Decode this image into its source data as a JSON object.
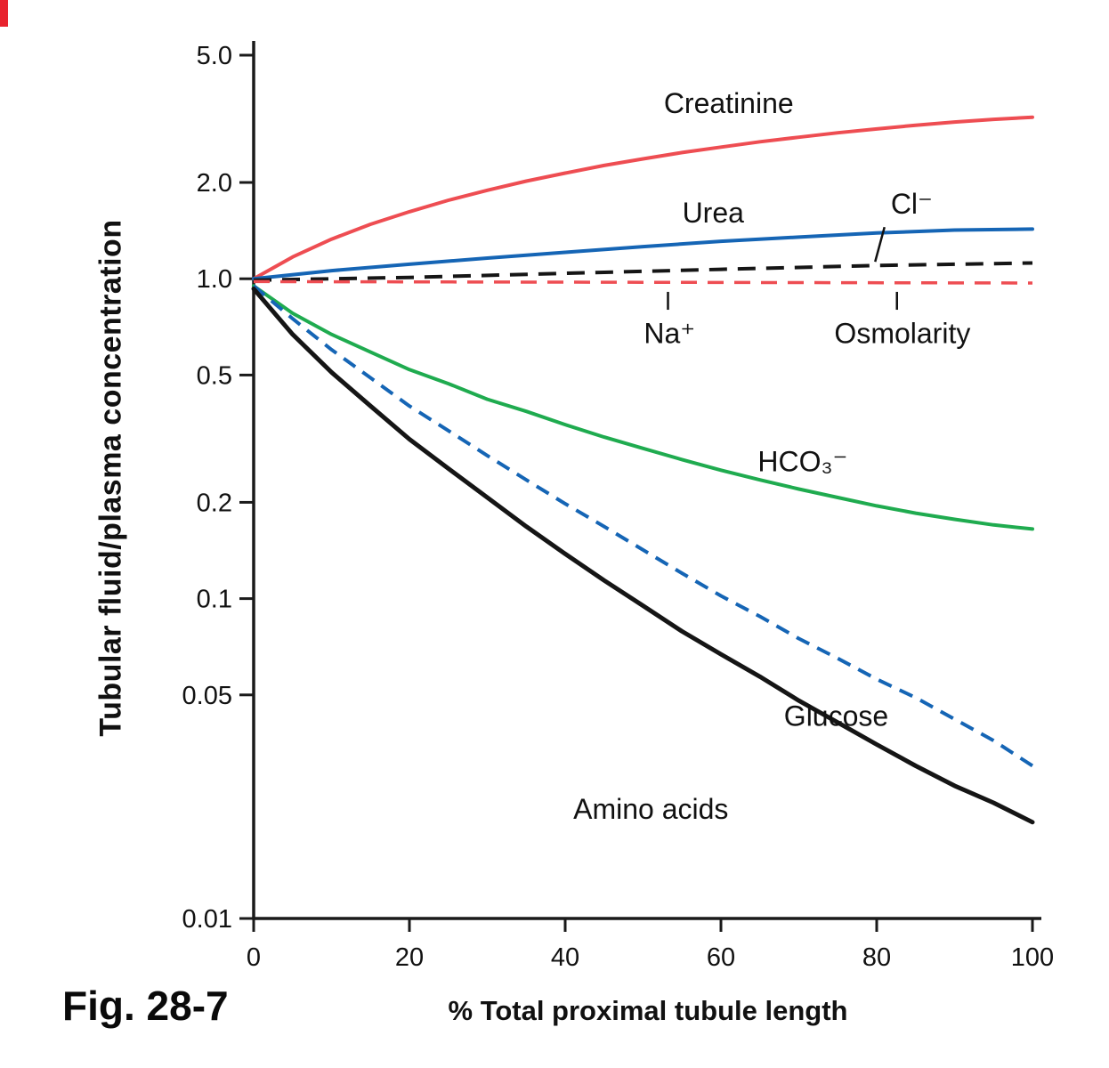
{
  "figure": {
    "caption": "Fig. 28-7",
    "xlabel": "% Total proximal tubule length",
    "ylabel": "Tubular fluid/plasma concentration"
  },
  "chart_data": {
    "type": "line",
    "title": "",
    "xlabel": "% Total proximal tubule length",
    "ylabel": "Tubular fluid/plasma concentration",
    "x_scale": "linear",
    "y_scale": "log",
    "xlim": [
      0,
      100
    ],
    "ylim": [
      0.01,
      5.0
    ],
    "grid": false,
    "legend": "inline-labels",
    "axis_color": "#1a1a1a",
    "x_ticks": [
      {
        "v": 0,
        "label": "0"
      },
      {
        "v": 20,
        "label": "20"
      },
      {
        "v": 40,
        "label": "40"
      },
      {
        "v": 60,
        "label": "60"
      },
      {
        "v": 80,
        "label": "80"
      },
      {
        "v": 100,
        "label": "100"
      }
    ],
    "y_ticks": [
      {
        "v": 5.0,
        "label": "5.0"
      },
      {
        "v": 2.0,
        "label": "2.0"
      },
      {
        "v": 1.0,
        "label": "1.0"
      },
      {
        "v": 0.5,
        "label": "0.5"
      },
      {
        "v": 0.2,
        "label": "0.2"
      },
      {
        "v": 0.1,
        "label": "0.1"
      },
      {
        "v": 0.05,
        "label": "0.05"
      },
      {
        "v": 0.01,
        "label": "0.01"
      }
    ],
    "series": [
      {
        "name": "Creatinine",
        "color": "#ee4d52",
        "style": "solid",
        "width": 4,
        "x": [
          0,
          5,
          10,
          15,
          20,
          25,
          30,
          35,
          40,
          45,
          50,
          55,
          60,
          65,
          70,
          75,
          80,
          85,
          90,
          95,
          100
        ],
        "v": [
          1.0,
          1.17,
          1.33,
          1.48,
          1.62,
          1.76,
          1.89,
          2.02,
          2.14,
          2.26,
          2.37,
          2.48,
          2.58,
          2.68,
          2.77,
          2.86,
          2.94,
          3.02,
          3.09,
          3.15,
          3.2
        ]
      },
      {
        "name": "Urea",
        "color": "#1565b5",
        "style": "solid",
        "width": 4,
        "x": [
          0,
          10,
          20,
          30,
          40,
          50,
          60,
          70,
          80,
          90,
          100
        ],
        "v": [
          1.0,
          1.06,
          1.11,
          1.16,
          1.21,
          1.26,
          1.31,
          1.35,
          1.39,
          1.42,
          1.43
        ]
      },
      {
        "name": "Cl-",
        "color": "#151515",
        "style": "dashed",
        "dash": "20 12",
        "width": 4,
        "x": [
          0,
          20,
          40,
          60,
          80,
          100
        ],
        "v": [
          0.99,
          1.01,
          1.04,
          1.07,
          1.1,
          1.12
        ]
      },
      {
        "name": "Na+ / Osmolarity",
        "color": "#ee4d52",
        "style": "dashed",
        "dash": "18 12",
        "width": 3.5,
        "x": [
          0,
          100
        ],
        "v": [
          0.98,
          0.97
        ]
      },
      {
        "name": "HCO3-",
        "color": "#1fab4f",
        "style": "solid",
        "width": 4,
        "x": [
          0,
          5,
          10,
          15,
          20,
          25,
          30,
          35,
          40,
          45,
          50,
          55,
          60,
          65,
          70,
          75,
          80,
          85,
          90,
          95,
          100
        ],
        "v": [
          0.95,
          0.78,
          0.67,
          0.59,
          0.52,
          0.47,
          0.42,
          0.385,
          0.35,
          0.32,
          0.295,
          0.272,
          0.252,
          0.235,
          0.22,
          0.207,
          0.195,
          0.185,
          0.177,
          0.17,
          0.165
        ]
      },
      {
        "name": "Glucose",
        "color": "#1565b5",
        "style": "dashed",
        "dash": "16 10",
        "width": 4,
        "x": [
          0,
          5,
          10,
          15,
          20,
          25,
          30,
          35,
          40,
          45,
          50,
          55,
          60,
          65,
          70,
          75,
          80,
          85,
          90,
          95,
          100
        ],
        "v": [
          0.95,
          0.75,
          0.6,
          0.49,
          0.4,
          0.335,
          0.28,
          0.235,
          0.198,
          0.168,
          0.142,
          0.12,
          0.102,
          0.088,
          0.075,
          0.065,
          0.056,
          0.049,
          0.042,
          0.036,
          0.03
        ]
      },
      {
        "name": "Amino acids",
        "color": "#151515",
        "style": "solid",
        "width": 5,
        "x": [
          0,
          5,
          10,
          15,
          20,
          25,
          30,
          35,
          40,
          45,
          50,
          55,
          60,
          65,
          70,
          75,
          80,
          85,
          90,
          95,
          100
        ],
        "v": [
          0.93,
          0.67,
          0.51,
          0.4,
          0.315,
          0.255,
          0.207,
          0.168,
          0.138,
          0.114,
          0.095,
          0.079,
          0.067,
          0.057,
          0.048,
          0.041,
          0.035,
          0.03,
          0.026,
          0.023,
          0.02
        ]
      }
    ],
    "labels": [
      {
        "text": "Creatinine",
        "x": 61,
        "v": 3.3
      },
      {
        "text": "Urea",
        "x": 59,
        "v": 1.5
      },
      {
        "text": "Cl⁻",
        "x": 84.5,
        "v": 1.6,
        "pointer": [
          81.0,
          1.45,
          79.8,
          1.13
        ]
      },
      {
        "text": "Na⁺",
        "x": 53.4,
        "v": 0.63,
        "pointer": [
          53.2,
          0.91,
          53.2,
          0.8
        ]
      },
      {
        "text": "Osmolarity",
        "x": 83.3,
        "v": 0.63,
        "pointer": [
          82.6,
          0.91,
          82.6,
          0.8
        ]
      },
      {
        "text": "HCO₃⁻",
        "x": 70.5,
        "v": 0.25
      },
      {
        "text": "Glucose",
        "x": 74.8,
        "v": 0.04
      },
      {
        "text": "Amino acids",
        "x": 51,
        "v": 0.0205
      }
    ]
  }
}
